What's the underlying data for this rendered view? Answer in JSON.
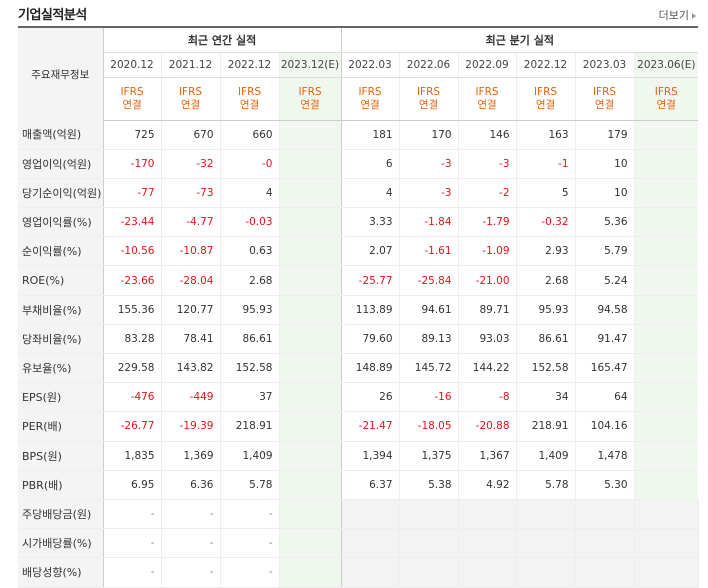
{
  "header": {
    "title": "기업실적분석",
    "more_label": "더보기"
  },
  "table": {
    "corner_label": "주요재무정보",
    "annual_group": "최근 연간 실적",
    "quarter_group": "최근 분기 실적",
    "annual_periods": [
      "2020.12",
      "2021.12",
      "2022.12",
      "2023.12(E)"
    ],
    "quarter_periods": [
      "2022.03",
      "2022.06",
      "2022.09",
      "2022.12",
      "2023.03",
      "2023.06(E)"
    ],
    "ifrs_line1": "IFRS",
    "ifrs_line2": "연결",
    "rows": [
      {
        "label": "매출액(억원)",
        "annual": [
          "725",
          "670",
          "660",
          ""
        ],
        "quarter": [
          "181",
          "170",
          "146",
          "163",
          "179",
          ""
        ]
      },
      {
        "label": "영업이익(억원)",
        "annual": [
          "-170",
          "-32",
          "-0",
          ""
        ],
        "quarter": [
          "6",
          "-3",
          "-3",
          "-1",
          "10",
          ""
        ]
      },
      {
        "label": "당기순이익(억원)",
        "annual": [
          "-77",
          "-73",
          "4",
          ""
        ],
        "quarter": [
          "4",
          "-3",
          "-2",
          "5",
          "10",
          ""
        ]
      },
      {
        "label": "영업이익률(%)",
        "annual": [
          "-23.44",
          "-4.77",
          "-0.03",
          ""
        ],
        "quarter": [
          "3.33",
          "-1.84",
          "-1.79",
          "-0.32",
          "5.36",
          ""
        ]
      },
      {
        "label": "순이익률(%)",
        "annual": [
          "-10.56",
          "-10.87",
          "0.63",
          ""
        ],
        "quarter": [
          "2.07",
          "-1.61",
          "-1.09",
          "2.93",
          "5.79",
          ""
        ]
      },
      {
        "label": "ROE(%)",
        "annual": [
          "-23.66",
          "-28.04",
          "2.68",
          ""
        ],
        "quarter": [
          "-25.77",
          "-25.84",
          "-21.00",
          "2.68",
          "5.24",
          ""
        ]
      },
      {
        "label": "부채비율(%)",
        "annual": [
          "155.36",
          "120.77",
          "95.93",
          ""
        ],
        "quarter": [
          "113.89",
          "94.61",
          "89.71",
          "95.93",
          "94.58",
          ""
        ]
      },
      {
        "label": "당좌비율(%)",
        "annual": [
          "83.28",
          "78.41",
          "86.61",
          ""
        ],
        "quarter": [
          "79.60",
          "89.13",
          "93.03",
          "86.61",
          "91.47",
          ""
        ]
      },
      {
        "label": "유보율(%)",
        "annual": [
          "229.58",
          "143.82",
          "152.58",
          ""
        ],
        "quarter": [
          "148.89",
          "145.72",
          "144.22",
          "152.58",
          "165.47",
          ""
        ]
      },
      {
        "label": "EPS(원)",
        "annual": [
          "-476",
          "-449",
          "37",
          ""
        ],
        "quarter": [
          "26",
          "-16",
          "-8",
          "34",
          "64",
          ""
        ]
      },
      {
        "label": "PER(배)",
        "annual": [
          "-26.77",
          "-19.39",
          "218.91",
          ""
        ],
        "quarter": [
          "-21.47",
          "-18.05",
          "-20.88",
          "218.91",
          "104.16",
          ""
        ]
      },
      {
        "label": "BPS(원)",
        "annual": [
          "1,835",
          "1,369",
          "1,409",
          ""
        ],
        "quarter": [
          "1,394",
          "1,375",
          "1,367",
          "1,409",
          "1,478",
          ""
        ]
      },
      {
        "label": "PBR(배)",
        "annual": [
          "6.95",
          "6.36",
          "5.78",
          ""
        ],
        "quarter": [
          "6.37",
          "5.38",
          "4.92",
          "5.78",
          "5.30",
          ""
        ]
      },
      {
        "label": "주당배당금(원)",
        "annual": [
          "-",
          "-",
          "-",
          ""
        ],
        "quarter": null
      },
      {
        "label": "시가배당률(%)",
        "annual": [
          "-",
          "-",
          "-",
          ""
        ],
        "quarter": null
      },
      {
        "label": "배당성향(%)",
        "annual": [
          "-",
          "-",
          "-",
          ""
        ],
        "quarter": null
      }
    ]
  },
  "colors": {
    "negative": "#e0141c",
    "ifrs": "#e8600c",
    "estimate_bg": "#f0f7ef"
  }
}
